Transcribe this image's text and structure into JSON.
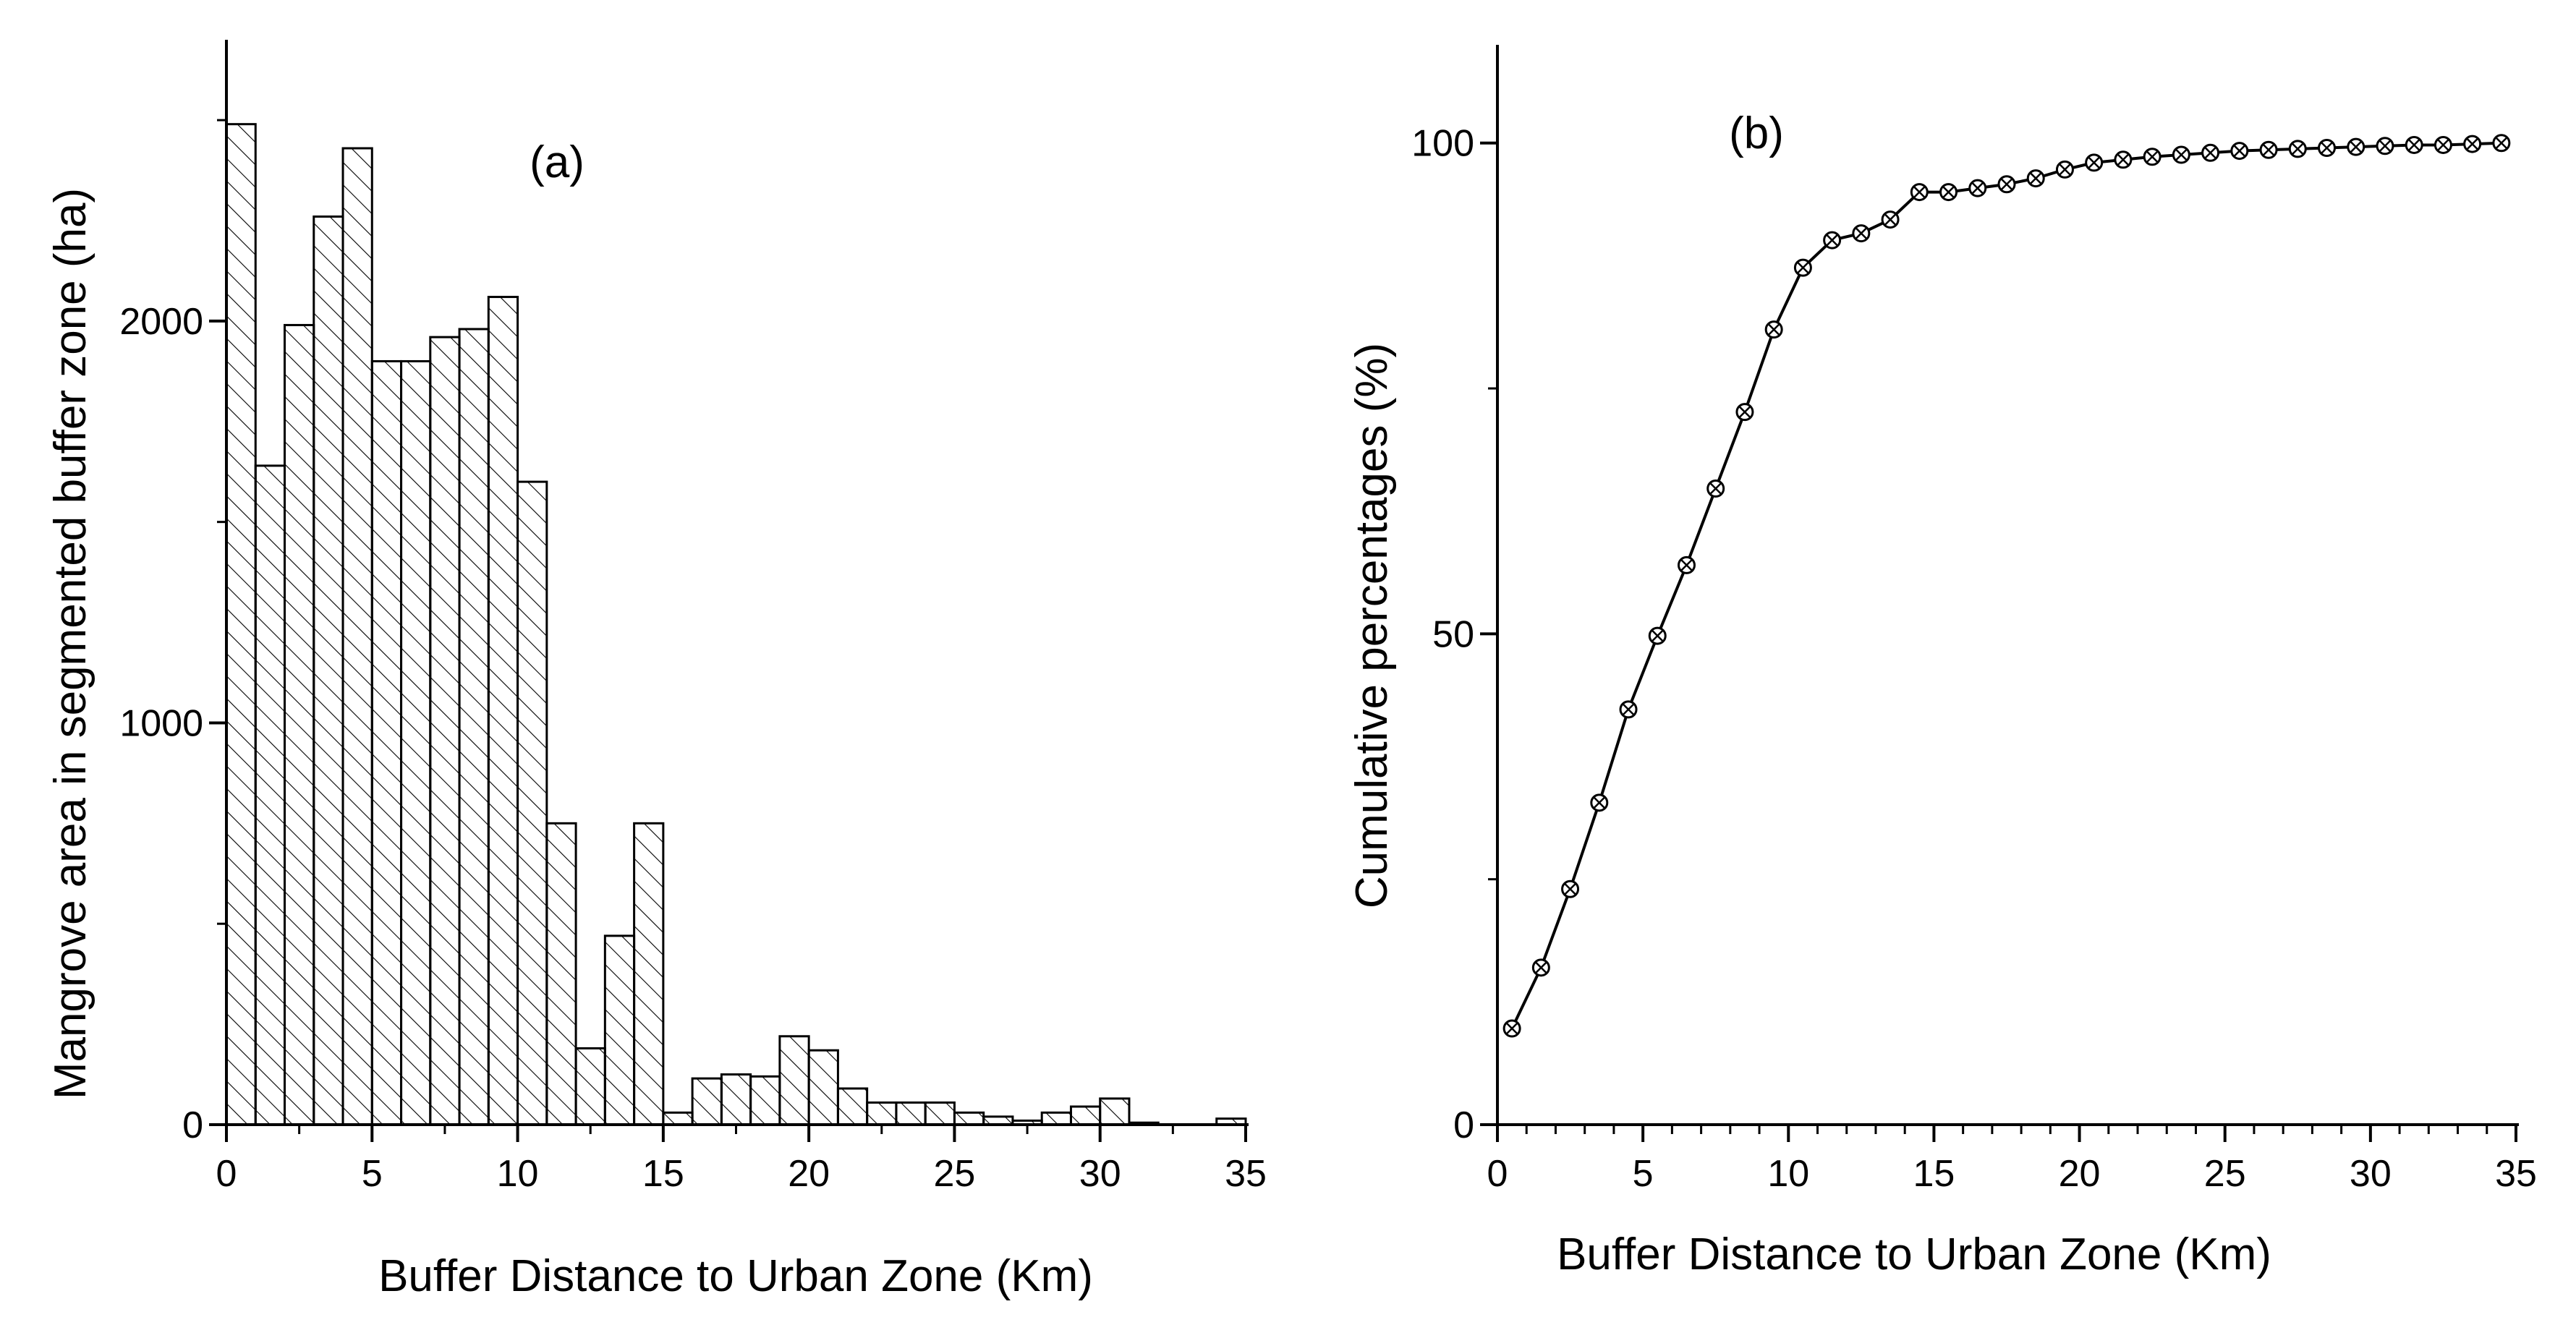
{
  "chart_data": [
    {
      "type": "bar",
      "panel_label": "(a)",
      "title": "",
      "xlabel": "Buffer Distance to Urban Zone (Km)",
      "ylabel": "Mangrove area in segmented buffer zone (ha)",
      "xlim": [
        0,
        35
      ],
      "ylim": [
        0,
        2700
      ],
      "xticks": [
        "0",
        "5",
        "10",
        "15",
        "20",
        "25",
        "30",
        "35"
      ],
      "yticks": [
        "0",
        "1000",
        "2000"
      ],
      "bin_width": 1,
      "bin_starts": [
        0,
        1,
        2,
        3,
        4,
        5,
        6,
        7,
        8,
        9,
        10,
        11,
        12,
        13,
        14,
        15,
        16,
        17,
        18,
        19,
        20,
        21,
        22,
        23,
        24,
        25,
        26,
        27,
        28,
        29,
        30,
        31,
        32,
        33,
        34
      ],
      "values": [
        2490,
        1640,
        1990,
        2260,
        2430,
        1900,
        1900,
        1960,
        1980,
        2060,
        1600,
        750,
        190,
        470,
        750,
        30,
        115,
        125,
        120,
        220,
        185,
        90,
        55,
        55,
        55,
        30,
        20,
        10,
        30,
        45,
        65,
        5,
        0,
        0,
        15
      ],
      "fill": "diagonal hatch",
      "grid": false,
      "legend": "none"
    },
    {
      "type": "line",
      "panel_label": "(b)",
      "title": "",
      "xlabel": "Buffer Distance to Urban Zone (Km)",
      "ylabel": "Cumulative percentages (%)",
      "xlim": [
        0,
        35
      ],
      "ylim": [
        0,
        110
      ],
      "xticks": [
        "0",
        "5",
        "10",
        "15",
        "20",
        "25",
        "30",
        "35"
      ],
      "yticks": [
        "0",
        "50",
        "100"
      ],
      "marker": "circle-x",
      "x": [
        0.5,
        1.5,
        2.5,
        3.5,
        4.5,
        5.5,
        6.5,
        7.5,
        8.5,
        9.5,
        10.5,
        11.5,
        12.5,
        13.5,
        14.5,
        15.5,
        16.5,
        17.5,
        18.5,
        19.5,
        20.5,
        21.5,
        22.5,
        23.5,
        24.5,
        25.5,
        26.5,
        27.5,
        28.5,
        29.5,
        30.5,
        31.5,
        32.5,
        33.5,
        34.5
      ],
      "y": [
        9.8,
        16.0,
        24.0,
        32.8,
        42.3,
        49.8,
        57.0,
        64.8,
        72.6,
        81.0,
        87.3,
        90.1,
        90.8,
        92.2,
        95.0,
        95.0,
        95.4,
        95.8,
        96.4,
        97.3,
        98.0,
        98.3,
        98.6,
        98.8,
        99.0,
        99.2,
        99.3,
        99.4,
        99.5,
        99.6,
        99.7,
        99.8,
        99.8,
        99.9,
        100.0
      ],
      "grid": false,
      "legend": "none"
    }
  ]
}
